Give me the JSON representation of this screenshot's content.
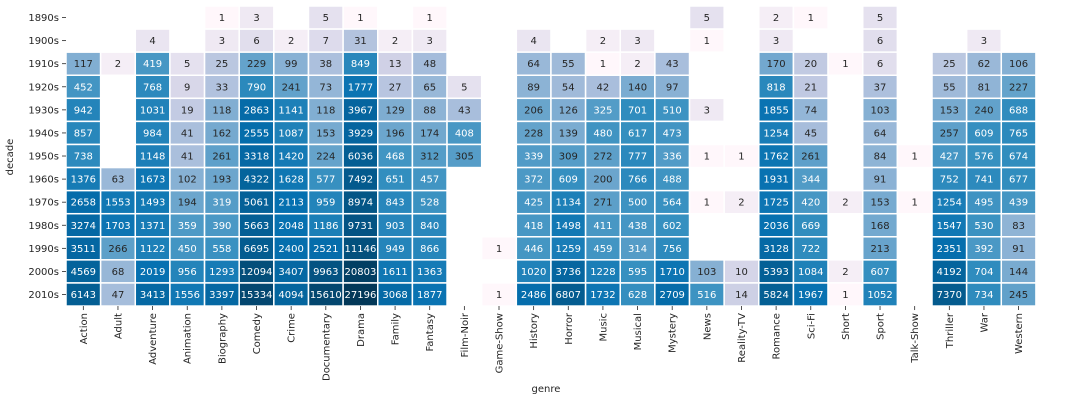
{
  "chart_data": {
    "type": "heatmap",
    "xlabel": "genre",
    "ylabel": "decade",
    "x_categories": [
      "Action",
      "Adult",
      "Adventure",
      "Animation",
      "Biography",
      "Comedy",
      "Crime",
      "Documentary",
      "Drama",
      "Family",
      "Fantasy",
      "Film-Noir",
      "Game-Show",
      "History",
      "Horror",
      "Music",
      "Musical",
      "Mystery",
      "News",
      "Reality-TV",
      "Romance",
      "Sci-Fi",
      "Short",
      "Sport",
      "Talk-Show",
      "Thriller",
      "War",
      "Western"
    ],
    "y_categories": [
      "1890s",
      "1900s",
      "1910s",
      "1920s",
      "1930s",
      "1940s",
      "1950s",
      "1960s",
      "1970s",
      "1980s",
      "1990s",
      "2000s",
      "2010s"
    ],
    "values": [
      [
        null,
        null,
        null,
        null,
        1,
        3,
        null,
        5,
        1,
        null,
        1,
        null,
        null,
        null,
        null,
        null,
        null,
        null,
        5,
        null,
        2,
        1,
        null,
        5,
        null,
        null,
        null,
        null
      ],
      [
        null,
        null,
        4,
        null,
        3,
        6,
        2,
        7,
        31,
        2,
        3,
        null,
        null,
        4,
        null,
        2,
        3,
        null,
        1,
        null,
        3,
        null,
        null,
        6,
        null,
        null,
        3,
        null
      ],
      [
        117,
        2,
        419,
        5,
        25,
        229,
        99,
        38,
        849,
        13,
        48,
        null,
        null,
        64,
        55,
        1,
        2,
        43,
        null,
        null,
        170,
        20,
        1,
        6,
        null,
        25,
        62,
        106
      ],
      [
        452,
        null,
        768,
        9,
        33,
        790,
        241,
        73,
        1777,
        27,
        65,
        5,
        null,
        89,
        54,
        42,
        140,
        97,
        null,
        null,
        818,
        21,
        null,
        37,
        null,
        55,
        81,
        227
      ],
      [
        942,
        null,
        1031,
        19,
        118,
        2863,
        1141,
        118,
        3967,
        129,
        88,
        43,
        null,
        206,
        126,
        325,
        701,
        510,
        3,
        null,
        1855,
        74,
        null,
        103,
        null,
        153,
        240,
        688
      ],
      [
        857,
        null,
        984,
        41,
        162,
        2555,
        1087,
        153,
        3929,
        196,
        174,
        408,
        null,
        228,
        139,
        480,
        617,
        473,
        null,
        null,
        1254,
        45,
        null,
        64,
        null,
        257,
        609,
        765
      ],
      [
        738,
        null,
        1148,
        41,
        261,
        3318,
        1420,
        224,
        6036,
        468,
        312,
        305,
        null,
        339,
        309,
        272,
        777,
        336,
        1,
        1,
        1762,
        261,
        null,
        84,
        1,
        427,
        576,
        674
      ],
      [
        1376,
        63,
        1673,
        102,
        193,
        4322,
        1628,
        577,
        7492,
        651,
        457,
        null,
        null,
        372,
        609,
        200,
        766,
        488,
        null,
        null,
        1931,
        344,
        null,
        91,
        null,
        752,
        741,
        677
      ],
      [
        2658,
        1553,
        1493,
        194,
        319,
        5061,
        2113,
        959,
        8974,
        843,
        528,
        null,
        null,
        425,
        1134,
        271,
        500,
        564,
        1,
        2,
        1725,
        420,
        2,
        153,
        1,
        1254,
        495,
        439
      ],
      [
        3274,
        1703,
        1371,
        359,
        390,
        5663,
        2048,
        1186,
        9731,
        903,
        840,
        null,
        null,
        418,
        1498,
        411,
        438,
        602,
        null,
        null,
        2036,
        669,
        null,
        168,
        null,
        1547,
        530,
        83
      ],
      [
        3511,
        266,
        1122,
        450,
        558,
        6695,
        2400,
        2521,
        11146,
        949,
        866,
        null,
        1,
        446,
        1259,
        459,
        314,
        756,
        null,
        null,
        3128,
        722,
        null,
        213,
        null,
        2351,
        392,
        91
      ],
      [
        4569,
        68,
        2019,
        956,
        1293,
        12094,
        3407,
        9963,
        20803,
        1611,
        1363,
        null,
        null,
        1020,
        3736,
        1228,
        595,
        1710,
        103,
        10,
        5393,
        1084,
        2,
        607,
        null,
        4192,
        704,
        144
      ],
      [
        6143,
        47,
        3413,
        1556,
        3397,
        15334,
        4094,
        15610,
        27196,
        3068,
        1877,
        null,
        1,
        2486,
        6807,
        1732,
        628,
        2709,
        516,
        14,
        5824,
        1967,
        1,
        1052,
        null,
        7370,
        734,
        245
      ]
    ],
    "color_scale": "log",
    "color_range": [
      1,
      27196
    ],
    "colormap": "PuBu",
    "cell_border_color": "#ffffff",
    "background_color": "#ffffff",
    "legend": "none"
  }
}
